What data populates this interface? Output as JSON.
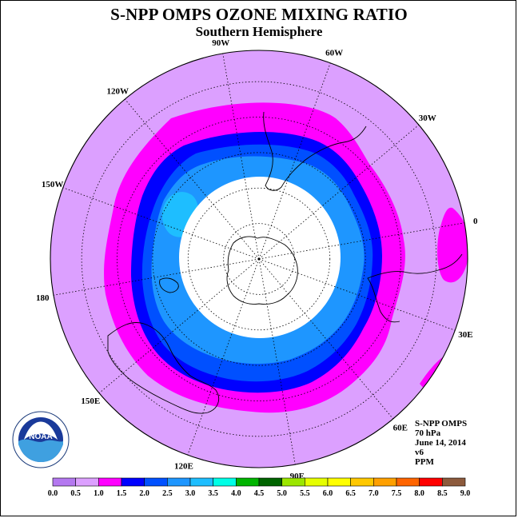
{
  "title": "S-NPP OMPS OZONE MIXING RATIO",
  "subtitle": "Southern Hemisphere",
  "longitude_labels": [
    {
      "id": "lon-90w",
      "text": "90W",
      "lon": -90
    },
    {
      "id": "lon-60w",
      "text": "60W",
      "lon": -60
    },
    {
      "id": "lon-30w",
      "text": "30W",
      "lon": -30
    },
    {
      "id": "lon-0",
      "text": "0",
      "lon": 0
    },
    {
      "id": "lon-30e",
      "text": "30E",
      "lon": 30
    },
    {
      "id": "lon-60e",
      "text": "60E",
      "lon": 60
    },
    {
      "id": "lon-90e",
      "text": "90E",
      "lon": 90
    },
    {
      "id": "lon-120e",
      "text": "120E",
      "lon": 120
    },
    {
      "id": "lon-150e",
      "text": "150E",
      "lon": 150
    },
    {
      "id": "lon-180",
      "text": "180",
      "lon": 180
    },
    {
      "id": "lon-150w",
      "text": "150W",
      "lon": -150
    },
    {
      "id": "lon-120w",
      "text": "120W",
      "lon": -120
    }
  ],
  "info": {
    "instrument": "S-NPP OMPS",
    "pressure": "70 hPa",
    "date": "June 14, 2014",
    "version": "v6",
    "units": "PPM"
  },
  "colorbar": {
    "ticks": [
      "0.0",
      "0.5",
      "1.0",
      "1.5",
      "2.0",
      "2.5",
      "3.0",
      "3.5",
      "4.0",
      "4.5",
      "5.0",
      "5.5",
      "6.0",
      "6.5",
      "7.0",
      "7.5",
      "8.0",
      "8.5",
      "9.0"
    ],
    "colors": [
      "#b478f0",
      "#dca0ff",
      "#ff00ff",
      "#0000ff",
      "#0050ff",
      "#1e96ff",
      "#1ebeff",
      "#00ffe6",
      "#00b400",
      "#006400",
      "#9be600",
      "#e6ff00",
      "#ffff00",
      "#ffc800",
      "#ffa000",
      "#ff6400",
      "#ff0000",
      "#8c5a3c"
    ]
  },
  "logo_text": "NOAA",
  "map_colors": {
    "background": "#dca0ff",
    "level_1_0": "#ff00ff",
    "level_1_5": "#0000ff",
    "level_2_0": "#0050ff",
    "level_2_5": "#1e96ff",
    "level_3_0": "#1ebeff",
    "missing": "#ffffff"
  }
}
